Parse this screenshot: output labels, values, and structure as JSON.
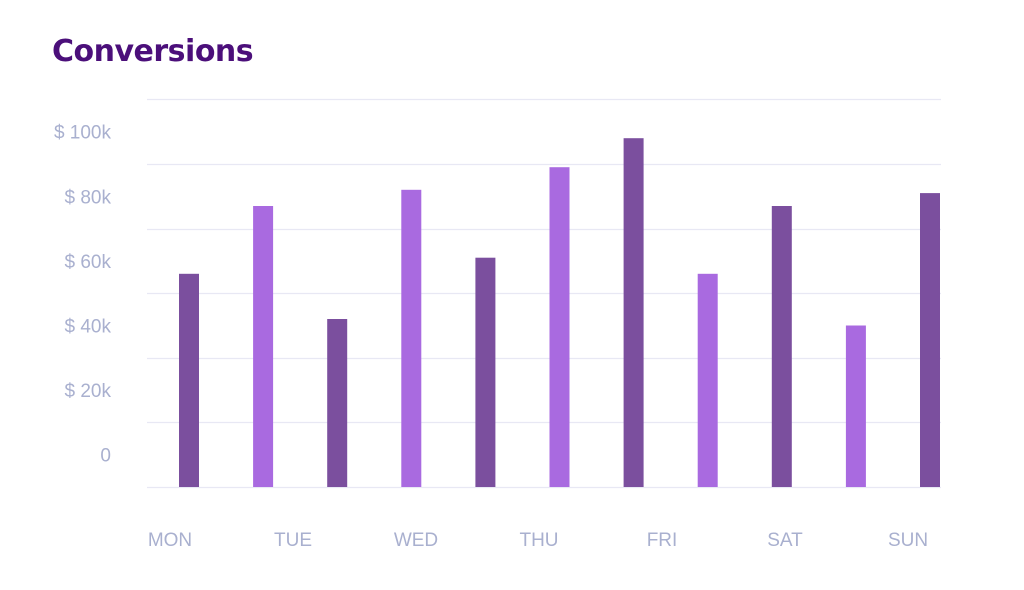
{
  "chart_data": {
    "type": "bar",
    "title": "Conversions",
    "xlabel": "",
    "ylabel": "",
    "ylim": [
      0,
      120000
    ],
    "y_ticks": [
      {
        "value": 0,
        "label": "0"
      },
      {
        "value": 20000,
        "label": "$ 20k"
      },
      {
        "value": 40000,
        "label": "$ 40k"
      },
      {
        "value": 60000,
        "label": "$ 60k"
      },
      {
        "value": 80000,
        "label": "$ 80k"
      },
      {
        "value": 100000,
        "label": "$ 100k"
      }
    ],
    "x_tick_labels": [
      "MON",
      "TUE",
      "WED",
      "THU",
      "FRI",
      "SAT",
      "SUN"
    ],
    "grid": true,
    "legend": "none",
    "values": [
      66000,
      87000,
      52000,
      92000,
      71000,
      99000,
      108000,
      66000,
      87000,
      50000,
      91000
    ],
    "bar_colors": [
      "#7b4f9e",
      "#a96ae0",
      "#7b4f9e",
      "#a96ae0",
      "#7b4f9e",
      "#a96ae0",
      "#7b4f9e",
      "#a96ae0",
      "#7b4f9e",
      "#a96ae0",
      "#7b4f9e"
    ]
  },
  "colors": {
    "title": "#4b0f7a",
    "grid": "#e8e8f4",
    "tick_text": "#a9b0cf",
    "bar_dark": "#7b4f9e",
    "bar_light": "#a96ae0"
  }
}
